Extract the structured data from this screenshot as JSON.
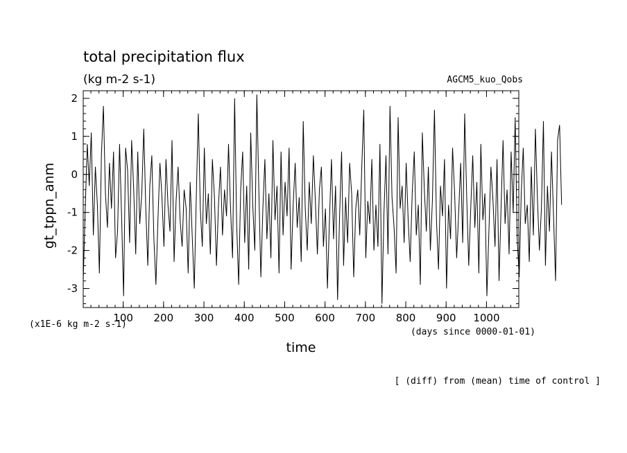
{
  "chart_data": {
    "type": "line",
    "title": "total precipitation flux",
    "units": "(kg m-2 s-1)",
    "experiment": "AGCM5_kuo_Qobs",
    "xlabel": "time",
    "ylabel": "gt_tppn_anm",
    "x_units": "(days since 0000-01-01)",
    "y_scale_note": "(x1E-6 kg m-2 s-1)",
    "footer": "[ (diff) from (mean) time of control ]",
    "xlim": [
      1,
      1080
    ],
    "ylim": [
      -3.5,
      2.2
    ],
    "x_ticks": [
      100,
      200,
      300,
      400,
      500,
      600,
      700,
      800,
      900,
      1000
    ],
    "y_ticks": [
      -3,
      -2,
      -1,
      0,
      1,
      2
    ],
    "series": [
      {
        "x_start": 1,
        "x_step": 5,
        "values": [
          -2.8,
          -0.9,
          0.8,
          -0.3,
          1.1,
          -1.6,
          0.2,
          -0.8,
          -2.6,
          0.5,
          1.8,
          -0.5,
          -1.4,
          0.3,
          -0.9,
          0.6,
          -2.2,
          -1.5,
          0.8,
          -1.1,
          -3.2,
          0.7,
          0.1,
          -1.8,
          0.9,
          -0.4,
          -2.1,
          0.6,
          -1.3,
          -0.5,
          1.2,
          -0.9,
          -2.4,
          -0.3,
          0.5,
          -1.7,
          -2.9,
          -1.2,
          0.3,
          -0.6,
          -1.9,
          0.4,
          -0.8,
          -1.5,
          0.9,
          -2.3,
          -0.7,
          0.2,
          -1.2,
          -1.9,
          -0.4,
          -0.9,
          -2.6,
          -0.2,
          -1.6,
          -3.0,
          -0.6,
          1.6,
          -0.9,
          -1.9,
          0.7,
          -1.3,
          -0.5,
          -2.1,
          0.4,
          -0.6,
          -2.4,
          -0.8,
          0.2,
          -1.6,
          -0.4,
          -1.1,
          0.8,
          -0.9,
          -2.2,
          2.0,
          -1.3,
          -2.9,
          -0.4,
          0.6,
          -1.8,
          -0.3,
          -2.5,
          1.1,
          -0.8,
          -2.0,
          2.1,
          -0.4,
          -2.7,
          -0.9,
          0.4,
          -1.7,
          -0.5,
          -2.2,
          0.9,
          -1.2,
          -0.3,
          -2.6,
          0.6,
          -1.6,
          -0.2,
          -1.1,
          0.7,
          -2.5,
          -0.8,
          0.3,
          -1.4,
          -0.6,
          -2.3,
          1.4,
          -0.9,
          -2.0,
          -0.2,
          -1.3,
          0.5,
          -0.7,
          -2.1,
          -0.4,
          0.2,
          -1.9,
          -0.9,
          -3.0,
          -1.2,
          0.4,
          -1.7,
          -0.3,
          -3.3,
          -1.1,
          0.6,
          -2.4,
          -0.6,
          -1.8,
          0.3,
          -0.5,
          -2.7,
          -0.9,
          -0.4,
          -1.6,
          0.2,
          1.7,
          -2.2,
          -0.7,
          -1.3,
          0.4,
          -2.0,
          -0.8,
          -1.9,
          0.8,
          -3.4,
          -1.0,
          0.5,
          -2.1,
          1.8,
          -0.6,
          -1.4,
          -2.6,
          1.5,
          -0.9,
          -0.3,
          -1.8,
          0.3,
          -1.2,
          -2.3,
          -0.5,
          0.6,
          -1.6,
          -0.8,
          -2.9,
          1.1,
          -0.4,
          -1.5,
          0.2,
          -2.0,
          -0.7,
          1.7,
          -1.2,
          -2.5,
          -0.3,
          -1.1,
          0.4,
          -3.0,
          -0.8,
          -1.7,
          0.7,
          -0.5,
          -2.2,
          -1.0,
          0.3,
          -1.8,
          1.6,
          -0.6,
          -2.4,
          -0.9,
          0.5,
          -1.4,
          -0.2,
          -2.6,
          0.8,
          -1.2,
          -0.5,
          -3.2,
          -1.5,
          0.2,
          -0.7,
          -1.9,
          0.4,
          -2.8,
          -0.9,
          0.9,
          -1.3,
          -0.4,
          -2.1,
          0.6,
          -1.0,
          1.5,
          -1.7,
          -2.7,
          -0.5,
          0.7,
          -1.3,
          -0.8,
          -2.3,
          0.2,
          -1.6,
          1.2,
          -0.6,
          -2.0,
          -0.9,
          1.4,
          -2.4,
          -0.3,
          -1.5,
          0.6,
          -1.1,
          -2.8,
          0.9,
          1.3,
          -0.8
        ]
      }
    ]
  }
}
